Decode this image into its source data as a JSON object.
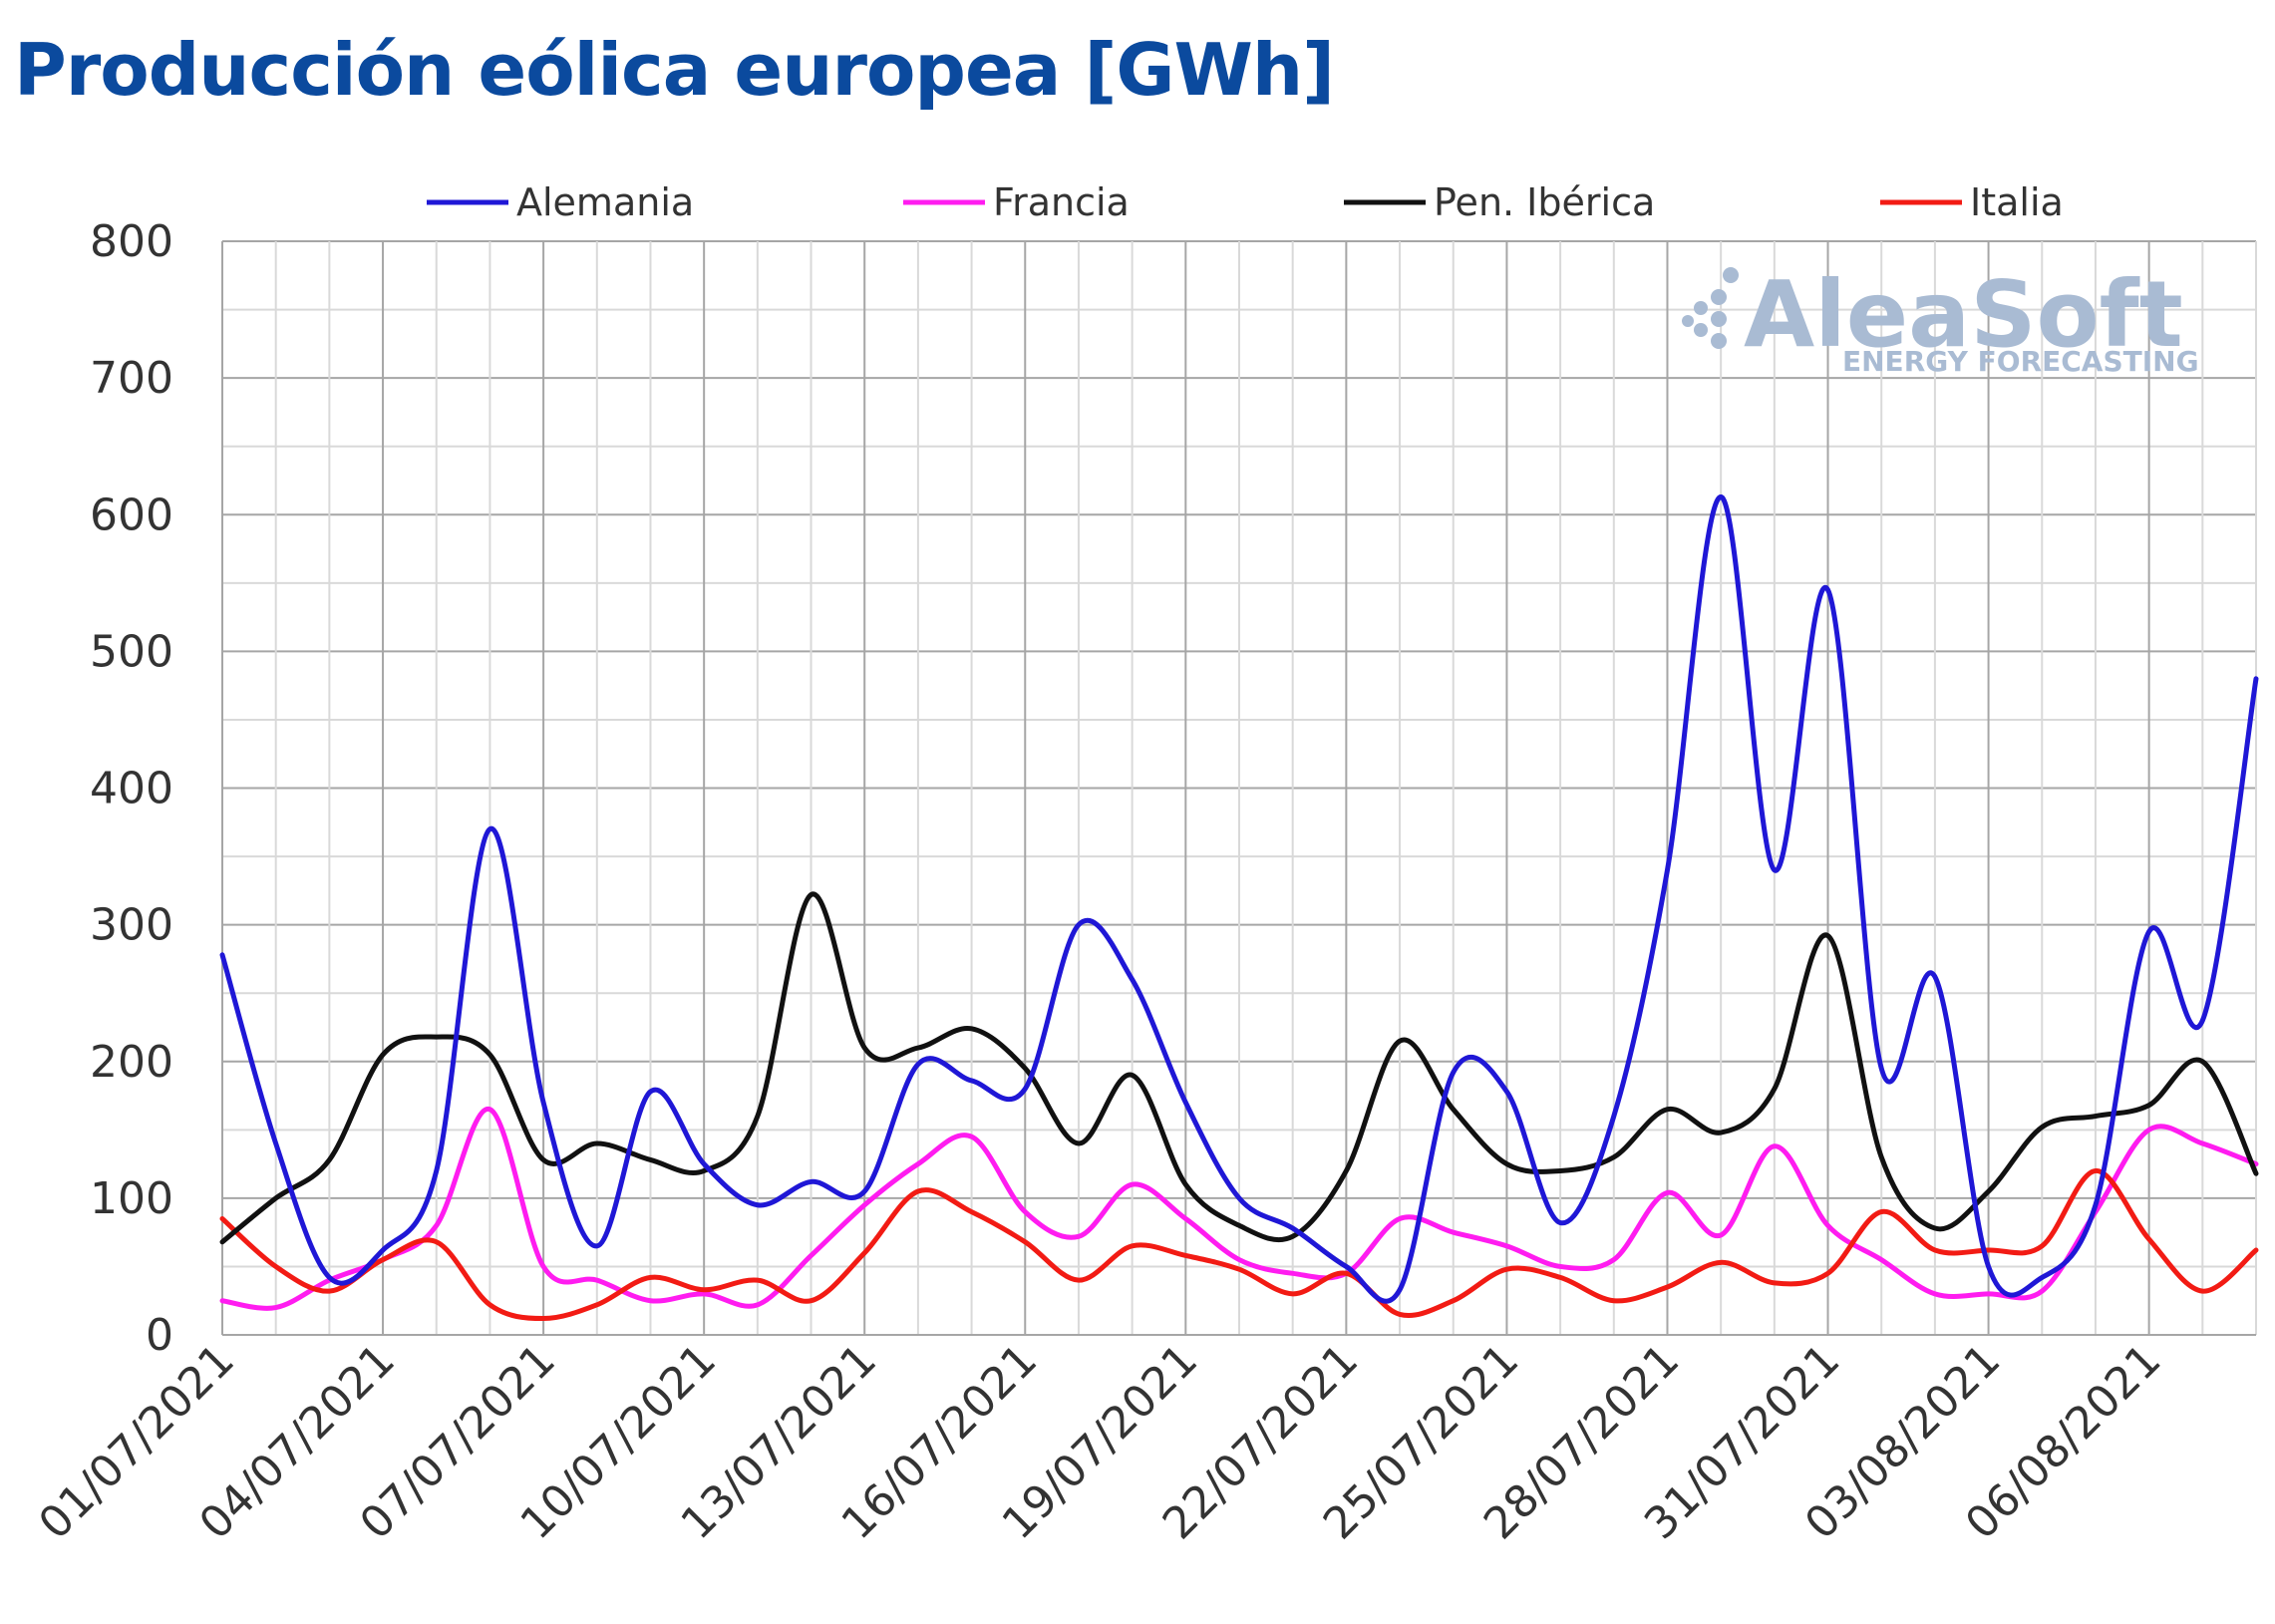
{
  "title": "Producción eólica europea [GWh]",
  "watermark": {
    "brand": "AleaSoft",
    "tagline": "ENERGY FORECASTING"
  },
  "chart_data": {
    "type": "line",
    "title": "Producción eólica europea [GWh]",
    "xlabel": "",
    "ylabel": "",
    "ylim": [
      0,
      800
    ],
    "yticks": [
      0,
      100,
      200,
      300,
      400,
      500,
      600,
      700,
      800
    ],
    "grid": true,
    "legend_position": "top",
    "x": [
      "01/07/2021",
      "02/07/2021",
      "03/07/2021",
      "04/07/2021",
      "05/07/2021",
      "06/07/2021",
      "07/07/2021",
      "08/07/2021",
      "09/07/2021",
      "10/07/2021",
      "11/07/2021",
      "12/07/2021",
      "13/07/2021",
      "14/07/2021",
      "15/07/2021",
      "16/07/2021",
      "17/07/2021",
      "18/07/2021",
      "19/07/2021",
      "20/07/2021",
      "21/07/2021",
      "22/07/2021",
      "23/07/2021",
      "24/07/2021",
      "25/07/2021",
      "26/07/2021",
      "27/07/2021",
      "28/07/2021",
      "29/07/2021",
      "30/07/2021",
      "31/07/2021",
      "01/08/2021",
      "02/08/2021",
      "03/08/2021",
      "04/08/2021",
      "05/08/2021",
      "06/08/2021",
      "07/08/2021",
      "08/08/2021"
    ],
    "x_tick_labels": [
      "01/07/2021",
      "04/07/2021",
      "07/07/2021",
      "10/07/2021",
      "13/07/2021",
      "16/07/2021",
      "19/07/2021",
      "22/07/2021",
      "25/07/2021",
      "28/07/2021",
      "31/07/2021",
      "03/08/2021",
      "06/08/2021"
    ],
    "series": [
      {
        "name": "Alemania",
        "color": "#1f17d6",
        "values": [
          278,
          140,
          42,
          62,
          120,
          370,
          170,
          65,
          178,
          125,
          95,
          112,
          105,
          198,
          186,
          180,
          300,
          260,
          170,
          100,
          78,
          50,
          33,
          192,
          178,
          82,
          160,
          340,
          613,
          340,
          545,
          195,
          262,
          50,
          42,
          95,
          295,
          230,
          480
        ]
      },
      {
        "name": "Francia",
        "color": "#ff1cf0",
        "values": [
          25,
          20,
          40,
          55,
          80,
          165,
          50,
          40,
          25,
          30,
          22,
          58,
          95,
          125,
          145,
          90,
          72,
          110,
          85,
          55,
          45,
          45,
          85,
          75,
          65,
          50,
          55,
          104,
          73,
          138,
          80,
          55,
          30,
          30,
          32,
          90,
          150,
          140,
          125
        ]
      },
      {
        "name": "Pen. Ibérica",
        "color": "#111111",
        "values": [
          68,
          100,
          128,
          205,
          218,
          205,
          128,
          140,
          128,
          120,
          160,
          322,
          210,
          210,
          224,
          195,
          140,
          190,
          110,
          80,
          72,
          120,
          215,
          165,
          125,
          120,
          130,
          165,
          148,
          180,
          292,
          130,
          78,
          105,
          152,
          160,
          168,
          200,
          118
        ]
      },
      {
        "name": "Italia",
        "color": "#f21b14",
        "values": [
          85,
          50,
          32,
          55,
          68,
          22,
          12,
          22,
          42,
          33,
          40,
          25,
          60,
          105,
          90,
          68,
          40,
          65,
          58,
          48,
          30,
          45,
          15,
          25,
          48,
          42,
          25,
          35,
          53,
          38,
          45,
          90,
          62,
          62,
          65,
          120,
          70,
          32,
          62
        ]
      }
    ]
  }
}
